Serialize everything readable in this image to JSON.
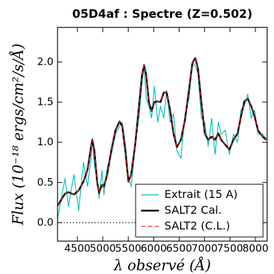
{
  "chart_data": {
    "type": "line",
    "title": "05D4af : Spectre (Z=0.502)",
    "xlabel": "λ observé (Å)",
    "ylabel": "Flux (10⁻¹⁸ ergs/cm²/s/Å)",
    "x": [
      4110,
      4257,
      4324,
      4432,
      4525,
      4619,
      4700,
      4767,
      4794,
      4834,
      4887,
      4927,
      4981,
      5021,
      5088,
      5169,
      5249,
      5329,
      5383,
      5450,
      5504,
      5557,
      5638,
      5718,
      5772,
      5812,
      5852,
      5906,
      5959,
      6013,
      6080,
      6133,
      6200,
      6254,
      6321,
      6388,
      6455,
      6535,
      6616,
      6696,
      6763,
      6817,
      6870,
      6937,
      7004,
      7071,
      7138,
      7205,
      7272,
      7326,
      7406,
      7487,
      7567,
      7648,
      7715,
      7782,
      7849,
      7916,
      7983,
      8050,
      8143,
      8210
    ],
    "series": [
      {
        "name": "Extrait (15 A)",
        "color": "#00bfbf",
        "linewidth": 1.2,
        "linestyle": "solid",
        "values": [
          0.05,
          0.55,
          0.2,
          0.6,
          0.15,
          0.75,
          0.45,
          0.8,
          1.05,
          0.7,
          0.6,
          0.3,
          0.65,
          0.35,
          0.7,
          0.85,
          1.1,
          1.2,
          1.25,
          0.95,
          0.55,
          0.45,
          0.95,
          1.35,
          1.75,
          1.95,
          1.55,
          1.45,
          1.3,
          1.7,
          1.25,
          1.45,
          1.3,
          1.65,
          1.25,
          1.35,
          0.9,
          0.8,
          1.35,
          1.55,
          2.0,
          1.95,
          1.85,
          1.3,
          1.25,
          0.95,
          1.3,
          0.85,
          1.25,
          1.1,
          1.15,
          0.85,
          1.1,
          1.0,
          1.4,
          1.45,
          1.6,
          1.3,
          1.4,
          1.1,
          1.1,
          1.05
        ]
      },
      {
        "name": "SALT2 Cal.",
        "color": "#000000",
        "linewidth": 2.5,
        "linestyle": "solid",
        "values": [
          0.21,
          0.36,
          0.38,
          0.35,
          0.4,
          0.51,
          0.66,
          0.94,
          1.03,
          0.9,
          0.51,
          0.37,
          0.47,
          0.45,
          0.6,
          0.91,
          1.15,
          1.26,
          1.2,
          0.85,
          0.51,
          0.6,
          0.98,
          1.5,
          1.84,
          1.96,
          1.84,
          1.5,
          1.39,
          1.5,
          1.51,
          1.5,
          1.62,
          1.62,
          1.41,
          1.11,
          0.94,
          1.03,
          1.28,
          1.67,
          1.99,
          2.05,
          1.92,
          1.5,
          1.11,
          1.03,
          1.07,
          1.03,
          1.11,
          1.03,
          0.97,
          0.91,
          1.03,
          1.11,
          1.32,
          1.51,
          1.54,
          1.45,
          1.32,
          1.15,
          1.07,
          1.03
        ]
      },
      {
        "name": "SALT2 (C.L.)",
        "color": "#e8261c",
        "linewidth": 1.3,
        "linestyle": "dashed",
        "values": [
          0.21,
          0.36,
          0.38,
          0.35,
          0.4,
          0.51,
          0.66,
          0.94,
          1.03,
          0.9,
          0.51,
          0.37,
          0.47,
          0.45,
          0.6,
          0.91,
          1.15,
          1.26,
          1.2,
          0.85,
          0.51,
          0.6,
          0.98,
          1.5,
          1.84,
          1.96,
          1.84,
          1.5,
          1.39,
          1.5,
          1.51,
          1.5,
          1.62,
          1.62,
          1.41,
          1.11,
          0.94,
          1.03,
          1.28,
          1.67,
          1.99,
          2.05,
          1.92,
          1.5,
          1.11,
          1.03,
          1.07,
          1.03,
          1.11,
          1.03,
          0.97,
          0.91,
          1.03,
          1.11,
          1.32,
          1.51,
          1.54,
          1.45,
          1.32,
          1.15,
          1.07,
          1.03
        ]
      }
    ],
    "xlim": [
      4110,
      8230
    ],
    "xticks": [
      4500,
      5000,
      5500,
      6000,
      6500,
      7000,
      7500,
      8000
    ],
    "ylim": [
      -0.23,
      2.43
    ],
    "yticks": [
      {
        "value": 0,
        "label": "0.0"
      },
      0.5,
      {
        "value": 1,
        "label": "1.0"
      },
      1.5,
      {
        "value": 2,
        "label": "2.0"
      }
    ],
    "hline": 0,
    "legend": "lower right",
    "grid": false
  }
}
